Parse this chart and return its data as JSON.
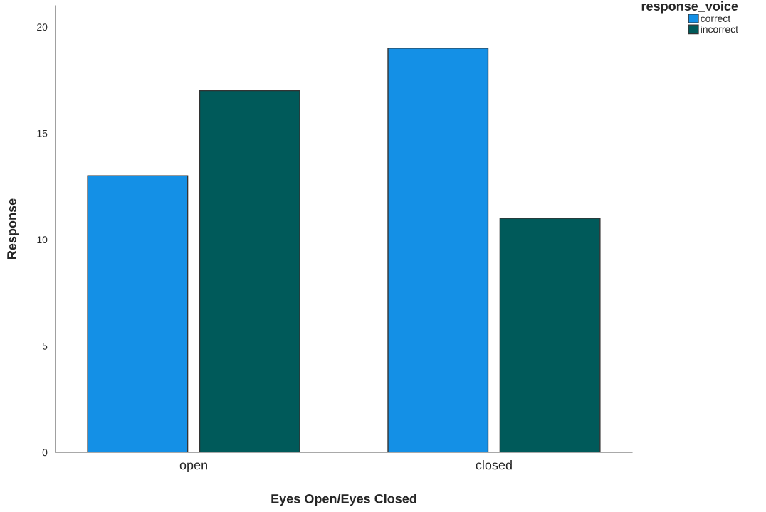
{
  "chart_data": {
    "type": "bar",
    "xlabel": "Eyes Open/Eyes Closed",
    "ylabel": "Response",
    "legend_title": "response_voice",
    "categories": [
      "open",
      "closed"
    ],
    "series": [
      {
        "name": "correct",
        "color": "#1490e6",
        "values": [
          13,
          19
        ]
      },
      {
        "name": "incorrect",
        "color": "#005a5a",
        "values": [
          17,
          11
        ]
      }
    ],
    "ylim": [
      0,
      21
    ],
    "yticks": [
      0,
      5,
      10,
      15,
      20
    ],
    "grid": false,
    "legend": "top right"
  }
}
